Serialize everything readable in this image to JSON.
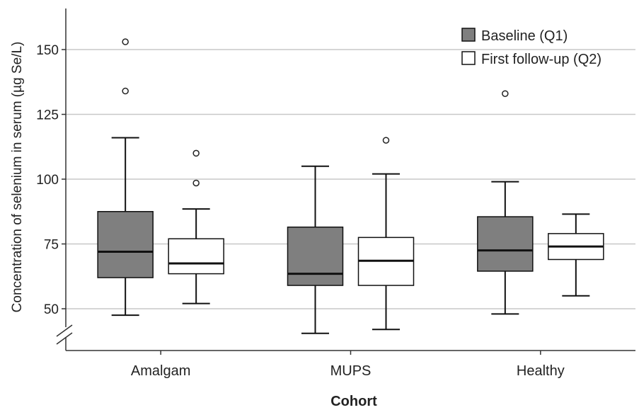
{
  "chart_data": {
    "type": "box",
    "title": "",
    "xlabel": "Cohort",
    "ylabel": "Concentration of selenium in serum (µg Se/L)",
    "ylim": [
      35,
      168
    ],
    "yticks": [
      50,
      75,
      100,
      125,
      150
    ],
    "axis_break": true,
    "grid": "horizontal",
    "legend_position": "top-right",
    "categories": [
      "Amalgam",
      "MUPS",
      "Healthy"
    ],
    "series": [
      {
        "name": "Baseline (Q1)",
        "color": "#7f7f7f",
        "boxes": [
          {
            "min": 47.5,
            "q1": 62,
            "median": 72,
            "q3": 87.5,
            "max": 116,
            "outliers": [
              134,
              153
            ]
          },
          {
            "min": 40.5,
            "q1": 59,
            "median": 63.5,
            "q3": 81.5,
            "max": 105,
            "outliers": []
          },
          {
            "min": 48,
            "q1": 64.5,
            "median": 72.5,
            "q3": 85.5,
            "max": 99,
            "outliers": [
              133
            ]
          }
        ]
      },
      {
        "name": "First follow-up (Q2)",
        "color": "#ffffff",
        "boxes": [
          {
            "min": 52,
            "q1": 63.5,
            "median": 67.5,
            "q3": 77,
            "max": 88.5,
            "outliers": [
              98.5,
              110
            ]
          },
          {
            "min": 42,
            "q1": 59,
            "median": 68.5,
            "q3": 77.5,
            "max": 102,
            "outliers": [
              115
            ]
          },
          {
            "min": 55,
            "q1": 69,
            "median": 74,
            "q3": 79,
            "max": 86.5,
            "outliers": []
          }
        ]
      }
    ]
  }
}
